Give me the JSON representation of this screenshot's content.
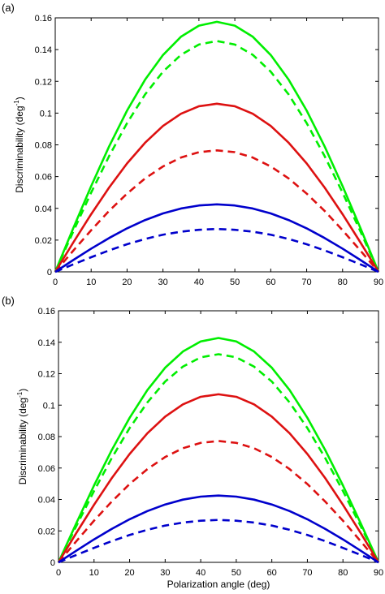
{
  "chart_data": [
    {
      "type": "line",
      "panel_label": "(a)",
      "xlabel": "",
      "ylabel": "Discriminability (deg",
      "ylabel_sup": "-1",
      "ylabel_close": ")",
      "xlim": [
        0,
        90
      ],
      "ylim": [
        0,
        0.16
      ],
      "xticks": [
        0,
        10,
        20,
        30,
        40,
        50,
        60,
        70,
        80,
        90
      ],
      "yticks": [
        0,
        0.02,
        0.04,
        0.06,
        0.08,
        0.1,
        0.12,
        0.14,
        0.16
      ],
      "grid": false,
      "x": [
        0,
        5,
        10,
        15,
        20,
        25,
        30,
        35,
        40,
        45,
        50,
        55,
        60,
        65,
        70,
        75,
        80,
        85,
        90
      ],
      "series": [
        {
          "color": "#00ee00",
          "style": "solid",
          "values": [
            0,
            0.0274,
            0.054,
            0.079,
            0.1016,
            0.121,
            0.1366,
            0.1481,
            0.1551,
            0.1575,
            0.1551,
            0.1481,
            0.1366,
            0.121,
            0.1016,
            0.079,
            0.054,
            0.0274,
            0
          ]
        },
        {
          "color": "#00ee00",
          "style": "dashed",
          "values": [
            0,
            0.0253,
            0.0499,
            0.0729,
            0.0937,
            0.1117,
            0.1261,
            0.1367,
            0.1432,
            0.1454,
            0.1432,
            0.1367,
            0.1261,
            0.1117,
            0.0937,
            0.0729,
            0.0499,
            0.0253,
            0
          ]
        },
        {
          "color": "#dd1111",
          "style": "solid",
          "values": [
            0,
            0.0184,
            0.0363,
            0.0531,
            0.0683,
            0.0813,
            0.0919,
            0.0996,
            0.1043,
            0.1059,
            0.1043,
            0.0996,
            0.0919,
            0.0813,
            0.0683,
            0.0531,
            0.0363,
            0.0184,
            0
          ]
        },
        {
          "color": "#dd1111",
          "style": "dashed",
          "values": [
            0,
            0.0133,
            0.0262,
            0.0384,
            0.0493,
            0.0588,
            0.0664,
            0.072,
            0.0754,
            0.0765,
            0.0754,
            0.072,
            0.0664,
            0.0588,
            0.0493,
            0.0384,
            0.0262,
            0.0133,
            0
          ]
        },
        {
          "color": "#0000cc",
          "style": "solid",
          "values": [
            0,
            0.0074,
            0.0146,
            0.0213,
            0.0274,
            0.0326,
            0.0368,
            0.0399,
            0.0418,
            0.0425,
            0.0418,
            0.0399,
            0.0368,
            0.0326,
            0.0274,
            0.0213,
            0.0146,
            0.0074,
            0
          ]
        },
        {
          "color": "#0000cc",
          "style": "dashed",
          "values": [
            0,
            0.0047,
            0.0092,
            0.0135,
            0.0174,
            0.0207,
            0.0234,
            0.0253,
            0.0265,
            0.027,
            0.0265,
            0.0253,
            0.0234,
            0.0207,
            0.0174,
            0.0135,
            0.0092,
            0.0047,
            0
          ]
        }
      ]
    },
    {
      "type": "line",
      "panel_label": "(b)",
      "xlabel": "Polarization angle (deg)",
      "ylabel": "Discriminability (deg",
      "ylabel_sup": "-1",
      "ylabel_close": ")",
      "xlim": [
        0,
        90
      ],
      "ylim": [
        0,
        0.16
      ],
      "xticks": [
        0,
        10,
        20,
        30,
        40,
        50,
        60,
        70,
        80,
        90
      ],
      "yticks": [
        0,
        0.02,
        0.04,
        0.06,
        0.08,
        0.1,
        0.12,
        0.14,
        0.16
      ],
      "grid": false,
      "x": [
        0,
        5,
        10,
        15,
        20,
        25,
        30,
        35,
        40,
        45,
        50,
        55,
        60,
        65,
        70,
        75,
        80,
        85,
        90
      ],
      "series": [
        {
          "color": "#00ee00",
          "style": "solid",
          "values": [
            0,
            0.0248,
            0.0489,
            0.0715,
            0.0919,
            0.1096,
            0.1238,
            0.1341,
            0.1405,
            0.1427,
            0.1405,
            0.1341,
            0.1238,
            0.1096,
            0.0919,
            0.0715,
            0.0489,
            0.0248,
            0
          ]
        },
        {
          "color": "#00ee00",
          "style": "dashed",
          "values": [
            0,
            0.023,
            0.0454,
            0.0664,
            0.0854,
            0.1017,
            0.115,
            0.1245,
            0.1304,
            0.1324,
            0.1304,
            0.1245,
            0.115,
            0.1017,
            0.0854,
            0.0664,
            0.0454,
            0.023,
            0
          ]
        },
        {
          "color": "#dd1111",
          "style": "solid",
          "values": [
            0,
            0.0186,
            0.0366,
            0.0536,
            0.0689,
            0.0821,
            0.0927,
            0.1005,
            0.1053,
            0.1069,
            0.1053,
            0.1005,
            0.0927,
            0.0821,
            0.0689,
            0.0536,
            0.0366,
            0.0186,
            0
          ]
        },
        {
          "color": "#dd1111",
          "style": "dashed",
          "values": [
            0,
            0.0134,
            0.0265,
            0.0387,
            0.0498,
            0.0593,
            0.067,
            0.0726,
            0.076,
            0.0772,
            0.076,
            0.0726,
            0.067,
            0.0593,
            0.0498,
            0.0387,
            0.0265,
            0.0134,
            0
          ]
        },
        {
          "color": "#0000cc",
          "style": "solid",
          "values": [
            0,
            0.0074,
            0.0146,
            0.0213,
            0.0274,
            0.0326,
            0.0368,
            0.0399,
            0.0418,
            0.0425,
            0.0418,
            0.0399,
            0.0368,
            0.0326,
            0.0274,
            0.0213,
            0.0146,
            0.0074,
            0
          ]
        },
        {
          "color": "#0000cc",
          "style": "dashed",
          "values": [
            0,
            0.0047,
            0.0092,
            0.0135,
            0.0174,
            0.0207,
            0.0234,
            0.0253,
            0.0265,
            0.027,
            0.0265,
            0.0253,
            0.0234,
            0.0207,
            0.0174,
            0.0135,
            0.0092,
            0.0047,
            0
          ]
        }
      ]
    }
  ]
}
